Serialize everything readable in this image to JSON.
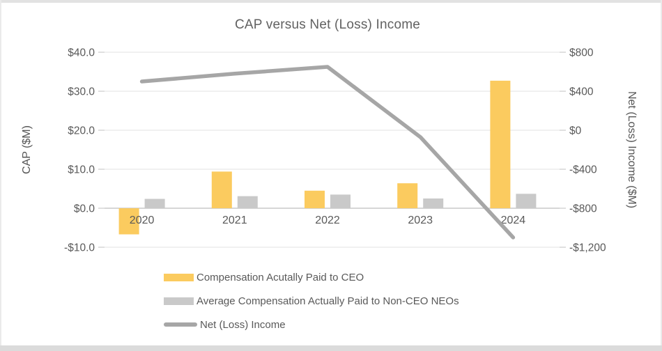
{
  "chart_data": {
    "type": "combo-bar-line",
    "title": "CAP versus Net (Loss) Income",
    "categories": [
      "2020",
      "2021",
      "2022",
      "2023",
      "2024"
    ],
    "series": [
      {
        "name": "Compensation Acutally Paid to CEO",
        "type": "bar",
        "axis": "left",
        "color": "#FBCB5F",
        "values": [
          -6.7,
          9.4,
          4.5,
          6.4,
          32.7
        ]
      },
      {
        "name": "Average Compensation Actually Paid to Non-CEO NEOs",
        "type": "bar",
        "axis": "left",
        "color": "#C9C9C9",
        "values": [
          2.4,
          3.1,
          3.5,
          2.5,
          3.7
        ]
      },
      {
        "name": "Net (Loss) Income",
        "type": "line",
        "axis": "right",
        "color": "#A6A6A6",
        "values": [
          500,
          580,
          650,
          -70,
          -1100
        ]
      }
    ],
    "left_axis": {
      "label": "CAP ($M)",
      "min": -10,
      "max": 40,
      "ticks": [
        "$40.0",
        "$30.0",
        "$20.0",
        "$10.0",
        "$0.0",
        "-$10.0"
      ]
    },
    "right_axis": {
      "label": "Net (Loss) Income ($M)",
      "min": -1200,
      "max": 800,
      "ticks": [
        "$800",
        "$400",
        "$0",
        "-$400",
        "-$800",
        "-$1,200"
      ]
    },
    "grid": true,
    "legend_position": "bottom-left",
    "colors": {
      "grid": "#E7E7E7",
      "zero_line": "#C8C8C8",
      "tick_mark": "#D9D9D9",
      "text": "#595959"
    }
  }
}
